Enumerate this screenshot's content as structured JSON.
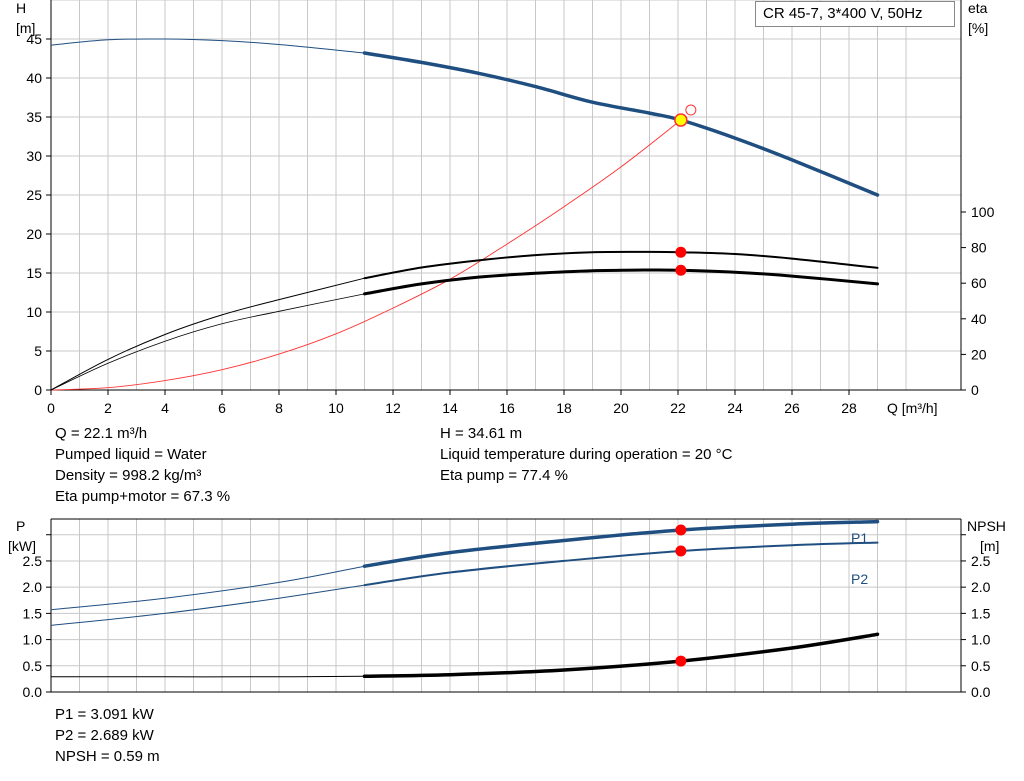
{
  "top_chart": {
    "title_box": "CR 45-7, 3*400 V, 50Hz",
    "y_left_label": [
      "H",
      "[m]"
    ],
    "y_right_label": [
      "eta",
      "[%]"
    ],
    "x_label": "Q [m³/h]",
    "x_ticks": [
      "0",
      "2",
      "4",
      "6",
      "8",
      "10",
      "12",
      "14",
      "16",
      "18",
      "20",
      "22",
      "24",
      "26",
      "28"
    ],
    "y_left_ticks": [
      "0",
      "5",
      "10",
      "15",
      "20",
      "25",
      "30",
      "35",
      "40",
      "45"
    ],
    "y_right_ticks": [
      "0",
      "20",
      "40",
      "60",
      "80",
      "100"
    ]
  },
  "bottom_chart": {
    "y_left_label": [
      "P",
      "[kW]"
    ],
    "y_right_label": [
      "NPSH",
      "[m]"
    ],
    "y_left_ticks": [
      "0.0",
      "0.5",
      "1.0",
      "1.5",
      "2.0",
      "2.5"
    ],
    "y_right_ticks": [
      "0.0",
      "0.5",
      "1.0",
      "1.5",
      "2.0",
      "2.5"
    ],
    "series_labels": {
      "p1": "P1",
      "p2": "P2"
    }
  },
  "info_left": [
    "Q = 22.1 m³/h",
    "Pumped liquid = Water",
    "Density = 998.2 kg/m³",
    "Eta pump+motor = 67.3 %"
  ],
  "info_right": [
    "H = 34.61 m",
    "Liquid temperature during operation = 20 °C",
    "Eta pump = 77.4 %"
  ],
  "info_bottom": [
    "P1 = 3.091 kW",
    "P2 = 2.689 kW",
    "NPSH = 0.59 m"
  ],
  "colors": {
    "head": "#1f4e80",
    "efficiency": "#000000",
    "system": "#ff3333",
    "marker": "#ff0000",
    "op_point": "#ffff00",
    "grid": "#c8c8c8"
  },
  "chart_data": [
    {
      "type": "line",
      "title": "CR 45-7, 3*400 V, 50Hz",
      "xlabel": "Q [m³/h]",
      "ylabel": "H [m]",
      "y2label": "eta [%]",
      "xlim": [
        0,
        30.5
      ],
      "ylim": [
        0,
        50
      ],
      "y2lim": [
        0,
        100
      ],
      "grid": true,
      "operating_point": {
        "Q": 22.1,
        "H": 34.61,
        "eta_pump": 77.4,
        "eta_total": 67.3
      },
      "series": [
        {
          "name": "H",
          "axis": "left",
          "x": [
            0,
            2,
            4,
            6,
            8,
            11,
            13,
            15,
            17,
            19,
            21,
            22.1,
            24,
            26,
            29
          ],
          "y": [
            44.2,
            44.9,
            45.0,
            44.8,
            44.3,
            43.2,
            42.0,
            40.6,
            38.9,
            36.9,
            35.5,
            34.61,
            32.3,
            29.5,
            25.0
          ]
        },
        {
          "name": "Eta pump",
          "axis": "right",
          "x": [
            0,
            2,
            4,
            6,
            8,
            11,
            13,
            15,
            17,
            19,
            21,
            22.1,
            24,
            26,
            29
          ],
          "y": [
            0,
            17.2,
            31.2,
            42.2,
            50.8,
            62.8,
            68.8,
            72.8,
            75.8,
            77.4,
            77.6,
            77.4,
            76.4,
            73.8,
            68.6
          ]
        },
        {
          "name": "Eta pump+motor",
          "axis": "right",
          "x": [
            0,
            2,
            4,
            6,
            8,
            11,
            13,
            15,
            17,
            19,
            21,
            22.1,
            24,
            26,
            29
          ],
          "y": [
            0,
            15.0,
            27.4,
            37.2,
            44.2,
            54.0,
            59.6,
            63.4,
            65.6,
            67.0,
            67.4,
            67.3,
            66.2,
            64.0,
            59.6
          ]
        },
        {
          "name": "System curve",
          "axis": "left",
          "x": [
            0,
            2,
            4,
            6,
            8,
            10,
            12,
            14,
            16,
            18,
            20,
            22.1
          ],
          "y": [
            0,
            0.3,
            1.2,
            2.6,
            4.6,
            7.2,
            10.5,
            14.2,
            18.7,
            23.5,
            28.6,
            34.61
          ]
        }
      ]
    },
    {
      "type": "line",
      "xlabel": "Q [m³/h]",
      "ylabel": "P [kW]",
      "y2label": "NPSH [m]",
      "xlim": [
        0,
        30.5
      ],
      "ylim": [
        0,
        3.3
      ],
      "y2lim": [
        0,
        3.3
      ],
      "grid": true,
      "series": [
        {
          "name": "P1",
          "axis": "left",
          "x": [
            0,
            4,
            8,
            11,
            14,
            18,
            22.1,
            26,
            29
          ],
          "y": [
            1.57,
            1.79,
            2.09,
            2.4,
            2.66,
            2.89,
            3.09,
            3.2,
            3.25
          ]
        },
        {
          "name": "P2",
          "axis": "left",
          "x": [
            0,
            4,
            8,
            11,
            14,
            18,
            22.1,
            26,
            29
          ],
          "y": [
            1.27,
            1.5,
            1.79,
            2.04,
            2.28,
            2.5,
            2.69,
            2.8,
            2.85
          ]
        },
        {
          "name": "NPSH",
          "axis": "right",
          "x": [
            0,
            4,
            8,
            11,
            14,
            18,
            22.1,
            26,
            29
          ],
          "y": [
            0.29,
            0.29,
            0.29,
            0.3,
            0.33,
            0.42,
            0.59,
            0.84,
            1.1
          ]
        }
      ]
    }
  ]
}
